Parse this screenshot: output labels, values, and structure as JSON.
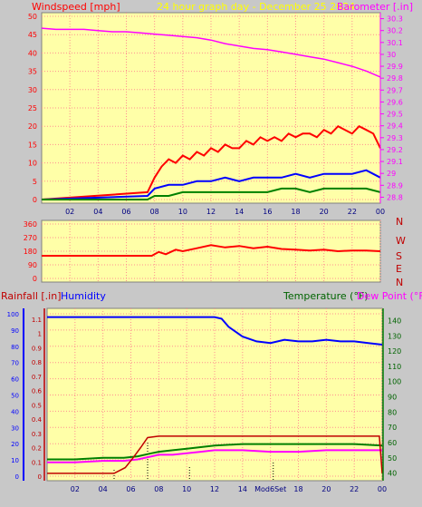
{
  "header": {
    "left_label": "Windspeed [mph]",
    "center_label": "24 hour graph day - December 25 2024 -",
    "right_label": "Barometer [.in]"
  },
  "direction_letters": [
    "N",
    "W",
    "S",
    "E",
    "N"
  ],
  "bottom_header": {
    "rainfall_label": "Rainfall [.in]",
    "humidity_label": "Humidity",
    "temp_label": "Temperature (°F)",
    "dew_label": "Dew Point (°F)"
  },
  "colors": {
    "background": "#c8c8c8",
    "plot_bg": "#ffffa8",
    "grid": "#ff9090",
    "wind_gust": "#ff0000",
    "wind_avg": "#0000ff",
    "wind_low": "#008000",
    "barometer": "#ff00ff",
    "humidity": "#0000ff",
    "temperature": "#008000",
    "dewpoint": "#ff00ff",
    "rainfall": "#c00000",
    "label_green": "#006400"
  },
  "chart_data": [
    {
      "type": "line",
      "x_ticks": [
        "02",
        "04",
        "06",
        "08",
        "10",
        "12",
        "14",
        "16",
        "18",
        "20",
        "22",
        "00"
      ],
      "y_left_ticks": [
        "0",
        "5",
        "10",
        "15",
        "20",
        "25",
        "30",
        "35",
        "40",
        "45",
        "50"
      ],
      "y_right_ticks": [
        "28.8",
        "28.9",
        "29",
        "29.1",
        "29.2",
        "29.3",
        "29.4",
        "29.5",
        "29.6",
        "29.7",
        "29.8",
        "29.9",
        "30",
        "30.1",
        "30.2",
        "30.3"
      ],
      "ylim_left": [
        0,
        50
      ],
      "ylim_right": [
        28.75,
        30.35
      ],
      "series": [
        {
          "name": "Barometer",
          "axis": "right",
          "x": [
            0,
            1,
            2,
            3,
            4,
            5,
            6,
            7,
            8,
            9,
            10,
            11,
            12,
            13,
            14,
            15,
            16,
            17,
            18,
            19,
            20,
            21,
            22,
            23,
            24
          ],
          "values": [
            30.22,
            30.21,
            30.21,
            30.21,
            30.2,
            30.19,
            30.19,
            30.18,
            30.17,
            30.16,
            30.15,
            30.14,
            30.12,
            30.09,
            30.07,
            30.05,
            30.04,
            30.02,
            30.0,
            29.98,
            29.96,
            29.93,
            29.9,
            29.86,
            29.81
          ]
        },
        {
          "name": "Gust",
          "axis": "left",
          "x": [
            0,
            7.5,
            8,
            8.5,
            9,
            9.5,
            10,
            10.5,
            11,
            11.5,
            12,
            12.5,
            13,
            13.5,
            14,
            14.5,
            15,
            15.5,
            16,
            16.5,
            17,
            17.5,
            18,
            18.5,
            19,
            19.5,
            20,
            20.5,
            21,
            21.5,
            22,
            22.5,
            23,
            23.5,
            24
          ],
          "values": [
            0,
            2,
            6,
            9,
            11,
            10,
            12,
            11,
            13,
            12,
            14,
            13,
            15,
            14,
            14,
            16,
            15,
            17,
            16,
            17,
            16,
            18,
            17,
            18,
            18,
            17,
            19,
            18,
            20,
            19,
            18,
            20,
            19,
            18,
            14
          ]
        },
        {
          "name": "Average",
          "axis": "left",
          "x": [
            0,
            7.5,
            8,
            9,
            10,
            11,
            12,
            13,
            14,
            15,
            16,
            17,
            18,
            19,
            20,
            21,
            22,
            23,
            24
          ],
          "values": [
            0,
            1,
            3,
            4,
            4,
            5,
            5,
            6,
            5,
            6,
            6,
            6,
            7,
            6,
            7,
            7,
            7,
            8,
            6
          ]
        },
        {
          "name": "Low",
          "axis": "left",
          "x": [
            0,
            7.5,
            8,
            9,
            10,
            11,
            12,
            13,
            14,
            15,
            16,
            17,
            18,
            19,
            20,
            21,
            22,
            23,
            24
          ],
          "values": [
            0,
            0,
            1,
            1,
            2,
            2,
            2,
            2,
            2,
            2,
            2,
            3,
            3,
            2,
            3,
            3,
            3,
            3,
            2
          ]
        }
      ]
    },
    {
      "type": "line",
      "x_ticks": [
        "02",
        "04",
        "06",
        "08",
        "10",
        "12",
        "14",
        "16",
        "18",
        "20",
        "22",
        "00"
      ],
      "y_ticks": [
        "0",
        "90",
        "180",
        "270",
        "360"
      ],
      "ylim": [
        0,
        360
      ],
      "series": [
        {
          "name": "Wind direction",
          "x": [
            0,
            2,
            4,
            6,
            7.8,
            8.3,
            8.8,
            9.5,
            10,
            11,
            12,
            13,
            14,
            15,
            16,
            17,
            18,
            19,
            20,
            21,
            22,
            23,
            24
          ],
          "values": [
            150,
            150,
            150,
            150,
            150,
            175,
            160,
            190,
            180,
            200,
            220,
            205,
            215,
            200,
            210,
            195,
            190,
            185,
            190,
            180,
            185,
            185,
            180
          ]
        }
      ]
    },
    {
      "type": "line",
      "x_ticks": [
        "02",
        "04",
        "06",
        "08",
        "10",
        "12",
        "14",
        "Mod6Set",
        "18",
        "20",
        "22",
        "00"
      ],
      "y_left_ticks_humidity": [
        "0",
        "10",
        "20",
        "30",
        "40",
        "50",
        "60",
        "70",
        "80",
        "90",
        "100"
      ],
      "y_left_ticks_rain": [
        "0",
        "0.1",
        "0.2",
        "0.3",
        "0.4",
        "0.5",
        "0.6",
        "0.7",
        "0.8",
        "0.9",
        "1",
        "1.1"
      ],
      "y_right_ticks": [
        "40",
        "50",
        "60",
        "70",
        "80",
        "90",
        "100",
        "110",
        "120",
        "130",
        "140"
      ],
      "ylim_humidity": [
        0,
        100
      ],
      "ylim_rain": [
        0,
        1.15
      ],
      "ylim_temp": [
        35,
        148
      ],
      "series": [
        {
          "name": "Humidity",
          "x": [
            0,
            2,
            4,
            6,
            8,
            10,
            12,
            12.5,
            13,
            14,
            15,
            16,
            17,
            18,
            19,
            20,
            21,
            22,
            23,
            24
          ],
          "values": [
            98,
            98,
            98,
            98,
            98,
            98,
            98,
            97,
            92,
            86,
            83,
            82,
            84,
            83,
            83,
            84,
            83,
            83,
            82,
            81
          ]
        },
        {
          "name": "Temperature",
          "x": [
            0,
            2,
            4,
            5.5,
            6.5,
            7.5,
            8,
            9,
            10,
            11,
            12,
            14,
            16,
            18,
            20,
            22,
            24
          ],
          "values": [
            49,
            49,
            50,
            50,
            51,
            53,
            54,
            55,
            56,
            57,
            58,
            59,
            59,
            59,
            59,
            59,
            58
          ]
        },
        {
          "name": "Dew Point",
          "x": [
            0,
            2,
            4,
            5.5,
            6.5,
            7.5,
            8,
            9,
            10,
            11,
            12,
            14,
            16,
            18,
            20,
            22,
            24
          ],
          "values": [
            47,
            47,
            48,
            48,
            49,
            51,
            52,
            52,
            53,
            54,
            55,
            55,
            54,
            54,
            55,
            55,
            55
          ]
        },
        {
          "name": "Rainfall",
          "x": [
            0,
            4.8,
            5.6,
            6.1,
            6.7,
            7.2,
            8,
            12,
            16,
            20,
            23.8,
            24
          ],
          "values": [
            0.02,
            0.02,
            0.06,
            0.12,
            0.2,
            0.27,
            0.28,
            0.28,
            0.28,
            0.28,
            0.28,
            0.02
          ]
        }
      ]
    }
  ]
}
